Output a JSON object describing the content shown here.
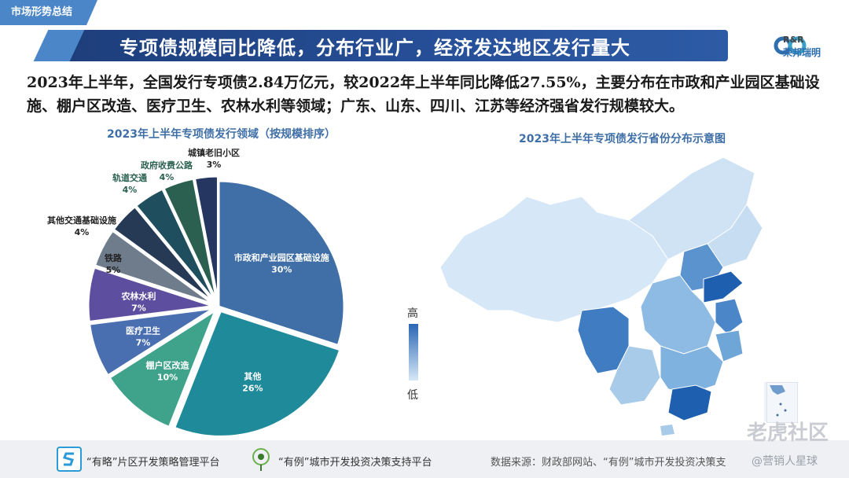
{
  "header": {
    "tag": "市场形势总结",
    "title": "专项债规模同比降低，分布行业广，经济发达地区发行量大",
    "logo_top": "R&R",
    "logo_bottom": "荣邦瑞明"
  },
  "summary": "2023年上半年，全国发行专项债2.84万亿元，较2022年上半年同比降低27.55%，主要分布在市政和产业园区基础设施、棚户区改造、医疗卫生、农林水利等领域；广东、山东、四川、江苏等经济强省发行规模较大。",
  "chart_data": [
    {
      "type": "pie",
      "title": "2023年上半年专项债发行领域（按规模排序）",
      "categories": [
        "市政和产业园区基础设施",
        "其他",
        "棚户区改造",
        "医疗卫生",
        "农林水利",
        "铁路",
        "其他交通基础设施",
        "轨道交通",
        "政府收费公路",
        "城镇老旧小区"
      ],
      "values": [
        30,
        26,
        10,
        7,
        7,
        5,
        4,
        4,
        4,
        3
      ],
      "labels": [
        "30%",
        "26%",
        "10%",
        "7%",
        "7%",
        "5%",
        "4%",
        "4%",
        "4%",
        "3%"
      ],
      "colors": [
        "#3f6fa6",
        "#1f8a9a",
        "#3ea38a",
        "#4a6fb0",
        "#5e4ea0",
        "#6f7c8c",
        "#263a55",
        "#1f4f5e",
        "#2b6050",
        "#253760"
      ]
    },
    {
      "type": "heatmap",
      "title": "2023年上半年专项债发行省份分布示意图",
      "legend": {
        "high": "高",
        "low": "低"
      }
    }
  ],
  "footer": {
    "item1": "“有略”片区开发策略管理平台",
    "item2": "“有例”城市开发投资决策支持平台",
    "source": "数据来源：财政部网站、“有例”城市开发投资决策支",
    "watermark1": "老虎社区",
    "watermark2": "@营销人星球"
  },
  "colors": {
    "accent": "#4a86c8",
    "title_bg": "#1d3e7a",
    "map_base": "#d6e8f7",
    "map_high": "#1f5fb0"
  }
}
